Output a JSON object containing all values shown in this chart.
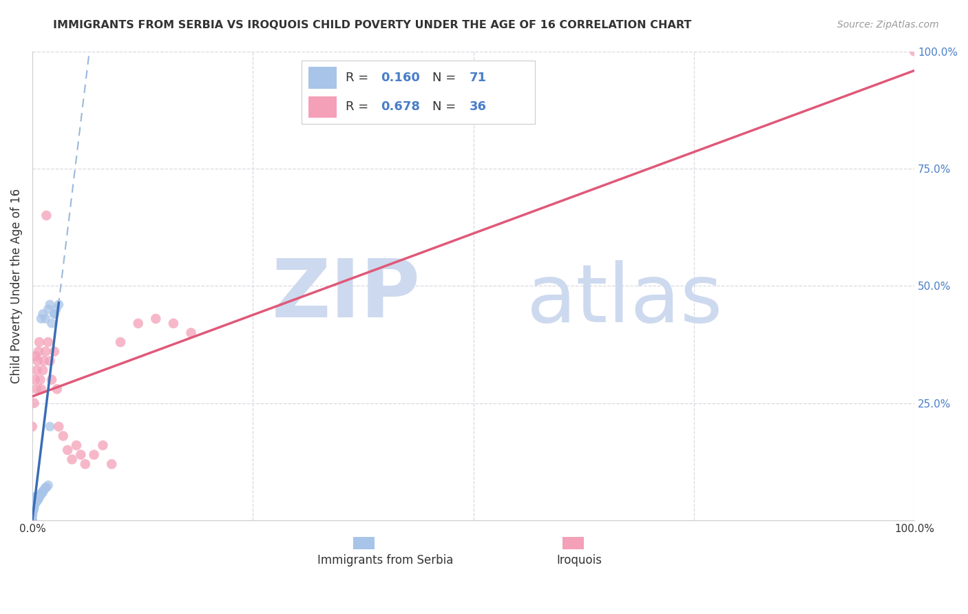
{
  "title": "IMMIGRANTS FROM SERBIA VS IROQUOIS CHILD POVERTY UNDER THE AGE OF 16 CORRELATION CHART",
  "source": "Source: ZipAtlas.com",
  "ylabel": "Child Poverty Under the Age of 16",
  "legend_label1": "Immigrants from Serbia",
  "legend_label2": "Iroquois",
  "r1": 0.16,
  "n1": 71,
  "r2": 0.678,
  "n2": 36,
  "serbia_color": "#a8c4e8",
  "iroquois_color": "#f4a0b8",
  "serbia_line_color": "#3a6db5",
  "iroquois_line_color": "#e05878",
  "dash_color": "#90b0d8",
  "watermark_color": "#cdd9ee",
  "grid_color": "#d0d0da",
  "right_tick_color": "#4a7ec7",
  "text_color": "#333333",
  "source_color": "#999999",
  "bg_color": "#ffffff",
  "serbia_x": [
    0.0,
    0.0,
    0.0,
    0.0,
    0.0,
    0.0,
    0.0,
    0.0,
    0.0,
    0.0,
    0.0,
    0.0,
    0.0,
    0.0,
    0.0,
    0.0,
    0.0,
    0.0,
    0.0,
    0.0,
    0.001,
    0.001,
    0.001,
    0.001,
    0.001,
    0.001,
    0.001,
    0.001,
    0.001,
    0.001,
    0.002,
    0.002,
    0.002,
    0.002,
    0.002,
    0.002,
    0.002,
    0.003,
    0.003,
    0.003,
    0.003,
    0.004,
    0.004,
    0.004,
    0.005,
    0.005,
    0.005,
    0.006,
    0.006,
    0.007,
    0.007,
    0.008,
    0.009,
    0.01,
    0.011,
    0.012,
    0.013,
    0.015,
    0.016,
    0.018,
    0.02,
    0.022,
    0.025,
    0.027,
    0.01,
    0.012,
    0.015,
    0.018,
    0.02,
    0.025,
    0.03
  ],
  "serbia_y": [
    0.0,
    0.0,
    0.0,
    0.0,
    0.0,
    0.0,
    0.0,
    0.01,
    0.01,
    0.01,
    0.015,
    0.015,
    0.02,
    0.02,
    0.02,
    0.025,
    0.025,
    0.03,
    0.03,
    0.035,
    0.02,
    0.02,
    0.025,
    0.025,
    0.03,
    0.03,
    0.035,
    0.035,
    0.04,
    0.045,
    0.025,
    0.03,
    0.03,
    0.035,
    0.04,
    0.04,
    0.05,
    0.035,
    0.035,
    0.04,
    0.045,
    0.04,
    0.045,
    0.05,
    0.04,
    0.045,
    0.05,
    0.045,
    0.05,
    0.045,
    0.05,
    0.05,
    0.055,
    0.055,
    0.06,
    0.06,
    0.065,
    0.07,
    0.07,
    0.075,
    0.2,
    0.42,
    0.44,
    0.45,
    0.43,
    0.44,
    0.43,
    0.45,
    0.46,
    0.44,
    0.46
  ],
  "iroquois_x": [
    0.0,
    0.002,
    0.003,
    0.004,
    0.005,
    0.005,
    0.006,
    0.007,
    0.008,
    0.009,
    0.01,
    0.012,
    0.013,
    0.015,
    0.016,
    0.018,
    0.02,
    0.022,
    0.025,
    0.028,
    0.03,
    0.035,
    0.04,
    0.045,
    0.05,
    0.055,
    0.06,
    0.07,
    0.08,
    0.09,
    0.1,
    0.12,
    0.14,
    0.16,
    0.18,
    1.0
  ],
  "iroquois_y": [
    0.2,
    0.25,
    0.3,
    0.35,
    0.28,
    0.32,
    0.34,
    0.36,
    0.38,
    0.3,
    0.28,
    0.32,
    0.34,
    0.36,
    0.65,
    0.38,
    0.34,
    0.3,
    0.36,
    0.28,
    0.2,
    0.18,
    0.15,
    0.13,
    0.16,
    0.14,
    0.12,
    0.14,
    0.16,
    0.12,
    0.38,
    0.42,
    0.43,
    0.42,
    0.4,
    1.0
  ],
  "xlim": [
    0.0,
    1.0
  ],
  "ylim": [
    0.0,
    1.0
  ],
  "figsize": [
    14.06,
    8.92
  ],
  "dpi": 100
}
